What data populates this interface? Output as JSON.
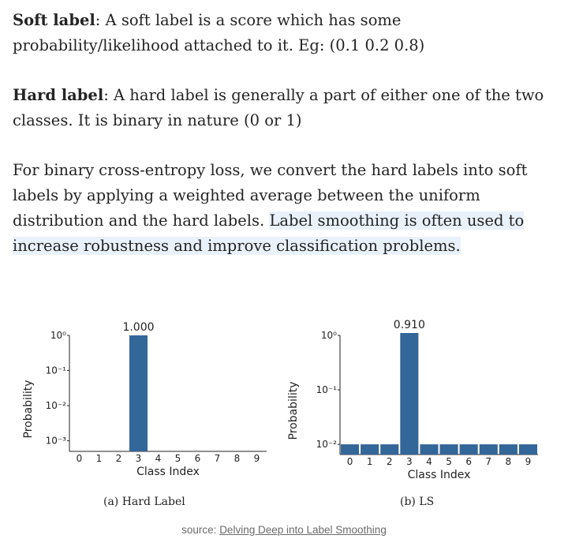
{
  "paragraphs": {
    "soft": {
      "term": "Soft label",
      "text": ": A soft label is a score which has some probability/likelihood attached to it. Eg: (0.1 0.2 0.8)"
    },
    "hard": {
      "term": "Hard label",
      "text": ": A hard label is generally a part of either one of the two classes. It is binary in nature (0 or 1)"
    },
    "bce": {
      "text": "For binary cross-entropy loss, we convert the hard labels into soft labels by applying a weighted average between the uniform distribution and the hard labels. ",
      "highlight": "Label smoothing is often used to increase robustness and improve classification problems."
    }
  },
  "chart_data": [
    {
      "type": "bar",
      "caption": "(a) Hard Label",
      "categories": [
        "0",
        "1",
        "2",
        "3",
        "4",
        "5",
        "6",
        "7",
        "8",
        "9"
      ],
      "values": [
        0,
        0,
        0,
        1.0,
        0,
        0,
        0,
        0,
        0,
        0
      ],
      "bar_label": "1.000",
      "xlabel": "Class Index",
      "ylabel": "Probability",
      "yscale": "log",
      "ylim": [
        0.0005,
        1
      ],
      "yticks": [
        {
          "v": 1,
          "label": "10⁰"
        },
        {
          "v": 0.1,
          "label": "10⁻¹"
        },
        {
          "v": 0.01,
          "label": "10⁻²"
        },
        {
          "v": 0.001,
          "label": "10⁻³"
        }
      ],
      "color": "#336699"
    },
    {
      "type": "bar",
      "caption": "(b) LS",
      "categories": [
        "0",
        "1",
        "2",
        "3",
        "4",
        "5",
        "6",
        "7",
        "8",
        "9"
      ],
      "values": [
        0.01,
        0.01,
        0.01,
        0.91,
        0.01,
        0.01,
        0.01,
        0.01,
        0.01,
        0.01
      ],
      "bar_label": "0.910",
      "xlabel": "Class Index",
      "ylabel": "Probability",
      "yscale": "log",
      "ylim": [
        0.0065,
        1
      ],
      "yticks": [
        {
          "v": 1,
          "label": "10⁰"
        },
        {
          "v": 0.1,
          "label": "10⁻¹"
        },
        {
          "v": 0.01,
          "label": "10⁻²"
        }
      ],
      "color": "#336699"
    }
  ],
  "source": {
    "prefix": "source: ",
    "link_text": "Delving Deep into Label Smoothing"
  }
}
